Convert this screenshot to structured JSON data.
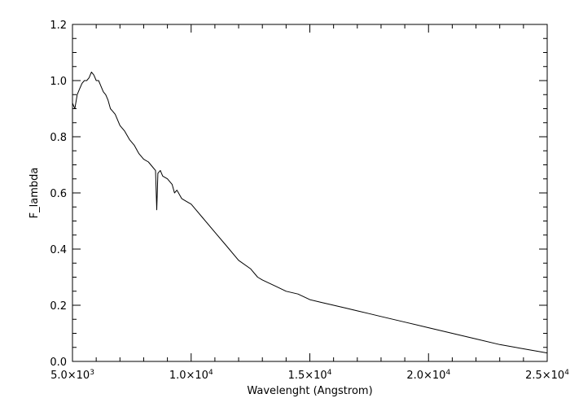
{
  "chart_data": {
    "type": "line",
    "title": "",
    "xlabel": "Wavelenght (Angstrom)",
    "ylabel": "F_lambda",
    "xlim": [
      5000,
      25000
    ],
    "ylim": [
      0.0,
      1.2
    ],
    "grid": false,
    "line_color": "#000000",
    "x_ticks": [
      {
        "value": 5000,
        "mantissa": "5.0",
        "exp": "3"
      },
      {
        "value": 10000,
        "mantissa": "1.0",
        "exp": "4"
      },
      {
        "value": 15000,
        "mantissa": "1.5",
        "exp": "4"
      },
      {
        "value": 20000,
        "mantissa": "2.0",
        "exp": "4"
      },
      {
        "value": 25000,
        "mantissa": "2.5",
        "exp": "4"
      }
    ],
    "y_ticks": [
      {
        "value": 0.0,
        "label": "0.0"
      },
      {
        "value": 0.2,
        "label": "0.2"
      },
      {
        "value": 0.4,
        "label": "0.4"
      },
      {
        "value": 0.6,
        "label": "0.6"
      },
      {
        "value": 0.8,
        "label": "0.8"
      },
      {
        "value": 1.0,
        "label": "1.0"
      },
      {
        "value": 1.2,
        "label": "1.2"
      }
    ],
    "series": [
      {
        "x": [
          5000,
          5100,
          5200,
          5300,
          5400,
          5500,
          5600,
          5700,
          5800,
          5900,
          6000,
          6100,
          6200,
          6300,
          6400,
          6500,
          6600,
          6700,
          6800,
          6900,
          7000,
          7200,
          7400,
          7600,
          7800,
          8000,
          8200,
          8400,
          8500,
          8550,
          8600,
          8700,
          8800,
          9000,
          9200,
          9300,
          9400,
          9600,
          9800,
          10000,
          10200,
          10500,
          11000,
          11500,
          12000,
          12500,
          12800,
          13000,
          13500,
          14000,
          14500,
          15000,
          15500,
          16000,
          16500,
          17000,
          17500,
          18000,
          19000,
          20000,
          21000,
          22000,
          23000,
          24000,
          25000
        ],
        "values": [
          0.92,
          0.9,
          0.95,
          0.97,
          0.99,
          1.0,
          1.0,
          1.01,
          1.03,
          1.02,
          1.0,
          1.0,
          0.98,
          0.96,
          0.95,
          0.93,
          0.9,
          0.89,
          0.88,
          0.86,
          0.84,
          0.82,
          0.79,
          0.77,
          0.74,
          0.72,
          0.71,
          0.69,
          0.68,
          0.54,
          0.67,
          0.68,
          0.66,
          0.65,
          0.63,
          0.6,
          0.61,
          0.58,
          0.57,
          0.56,
          0.54,
          0.51,
          0.46,
          0.41,
          0.36,
          0.33,
          0.3,
          0.29,
          0.27,
          0.25,
          0.24,
          0.22,
          0.21,
          0.2,
          0.19,
          0.18,
          0.17,
          0.16,
          0.14,
          0.12,
          0.1,
          0.08,
          0.06,
          0.045,
          0.03
        ]
      }
    ]
  }
}
